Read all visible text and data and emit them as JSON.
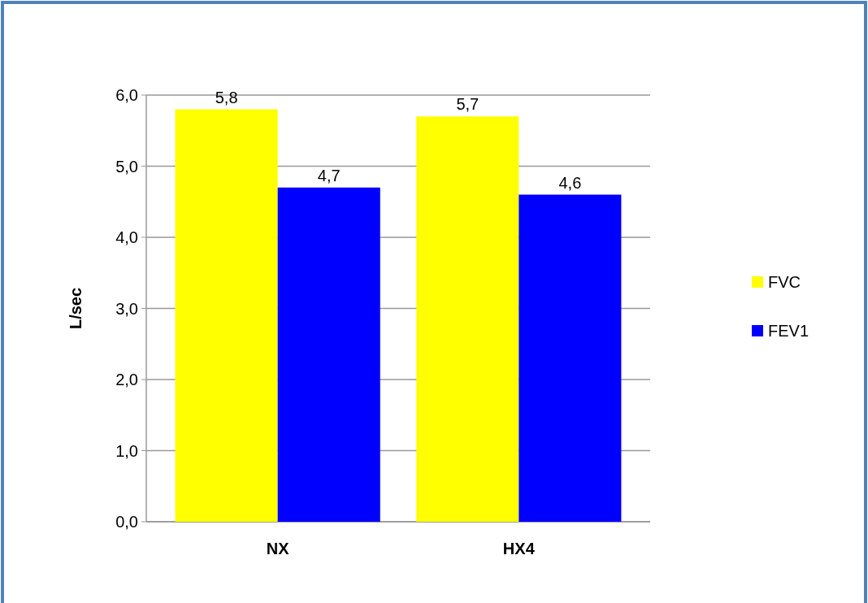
{
  "chart_data": {
    "type": "bar",
    "ylabel": "L/sec",
    "categories": [
      "NX",
      "HX4"
    ],
    "series": [
      {
        "name": "FVC",
        "color": "#ffff00",
        "values": [
          5.8,
          5.7
        ],
        "value_labels": [
          "5,8",
          "5,7"
        ]
      },
      {
        "name": "FEV1",
        "color": "#0000ff",
        "values": [
          4.7,
          4.6
        ],
        "value_labels": [
          "4,7",
          "4,6"
        ]
      }
    ],
    "ylim": [
      0,
      6
    ],
    "yticks": [
      {
        "value": 0,
        "label": "0,0"
      },
      {
        "value": 1,
        "label": "1,0"
      },
      {
        "value": 2,
        "label": "2,0"
      },
      {
        "value": 3,
        "label": "3,0"
      },
      {
        "value": 4,
        "label": "4,0"
      },
      {
        "value": 5,
        "label": "5,0"
      },
      {
        "value": 6,
        "label": "6,0"
      }
    ],
    "grid": "y",
    "legend": "right"
  }
}
